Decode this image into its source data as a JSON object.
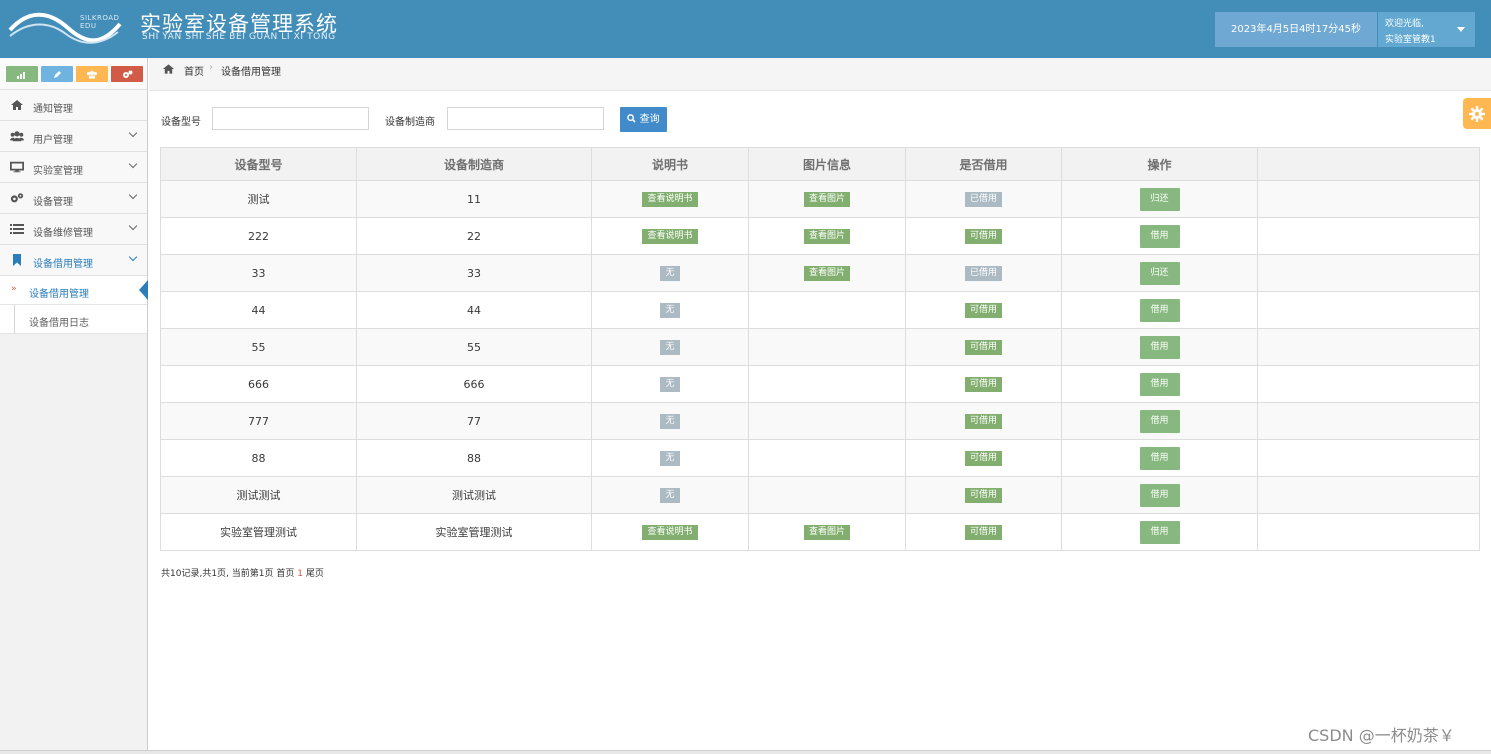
{
  "header": {
    "logo_text": "SILKROAD EDU",
    "title": "实验室设备管理系统",
    "subtitle": "SHI YAN SHI SHE BEI GUAN LI XI TONG",
    "datetime": "2023年4月5日4时17分45秒",
    "welcome": "欢迎光临,",
    "username": "实验室管教1"
  },
  "sidebar": {
    "shortcuts": [
      {
        "icon": "signal-icon",
        "color": "#87b87f"
      },
      {
        "icon": "pencil-icon",
        "color": "#6fb3e0"
      },
      {
        "icon": "users-icon",
        "color": "#ffb752"
      },
      {
        "icon": "cogs-icon",
        "color": "#d15b47"
      }
    ],
    "items": [
      {
        "label": "通知管理",
        "icon": "home-icon"
      },
      {
        "label": "用户管理",
        "icon": "users-icon"
      },
      {
        "label": "实验室管理",
        "icon": "desktop-icon"
      },
      {
        "label": "设备管理",
        "icon": "cogs-icon"
      },
      {
        "label": "设备维修管理",
        "icon": "list-icon"
      },
      {
        "label": "设备借用管理",
        "icon": "bookmark-icon"
      }
    ],
    "subitems": [
      {
        "label": "设备借用管理"
      },
      {
        "label": "设备借用日志"
      }
    ]
  },
  "breadcrumb": {
    "home": "首页",
    "current": "设备借用管理"
  },
  "search": {
    "model_label": "设备型号",
    "model_value": "",
    "maker_label": "设备制造商",
    "maker_value": "",
    "button": "查询"
  },
  "table": {
    "headers": [
      "设备型号",
      "设备制造商",
      "说明书",
      "图片信息",
      "是否借用",
      "操作",
      ""
    ],
    "rows": [
      {
        "model": "测试",
        "maker": "11",
        "manual": "查看说明书",
        "manual_type": "view",
        "image": "查看图片",
        "status": "已借用",
        "status_type": "borrowed",
        "action": "归还"
      },
      {
        "model": "222",
        "maker": "22",
        "manual": "查看说明书",
        "manual_type": "view",
        "image": "查看图片",
        "status": "可借用",
        "status_type": "available",
        "action": "借用"
      },
      {
        "model": "33",
        "maker": "33",
        "manual": "无",
        "manual_type": "none",
        "image": "查看图片",
        "status": "已借用",
        "status_type": "borrowed",
        "action": "归还"
      },
      {
        "model": "44",
        "maker": "44",
        "manual": "无",
        "manual_type": "none",
        "image": "",
        "status": "可借用",
        "status_type": "available",
        "action": "借用"
      },
      {
        "model": "55",
        "maker": "55",
        "manual": "无",
        "manual_type": "none",
        "image": "",
        "status": "可借用",
        "status_type": "available",
        "action": "借用"
      },
      {
        "model": "666",
        "maker": "666",
        "manual": "无",
        "manual_type": "none",
        "image": "",
        "status": "可借用",
        "status_type": "available",
        "action": "借用"
      },
      {
        "model": "777",
        "maker": "77",
        "manual": "无",
        "manual_type": "none",
        "image": "",
        "status": "可借用",
        "status_type": "available",
        "action": "借用"
      },
      {
        "model": "88",
        "maker": "88",
        "manual": "无",
        "manual_type": "none",
        "image": "",
        "status": "可借用",
        "status_type": "available",
        "action": "借用"
      },
      {
        "model": "测试测试",
        "maker": "测试测试",
        "manual": "无",
        "manual_type": "none",
        "image": "",
        "status": "可借用",
        "status_type": "available",
        "action": "借用"
      },
      {
        "model": "实验室管理测试",
        "maker": "实验室管理测试",
        "manual": "查看说明书",
        "manual_type": "view",
        "image": "查看图片",
        "status": "可借用",
        "status_type": "available",
        "action": "借用"
      }
    ]
  },
  "pager": {
    "summary": "共10记录,共1页, 当前第1页",
    "first": "首页",
    "page": "1",
    "last": "尾页"
  },
  "watermark": "CSDN @一杯奶茶￥"
}
